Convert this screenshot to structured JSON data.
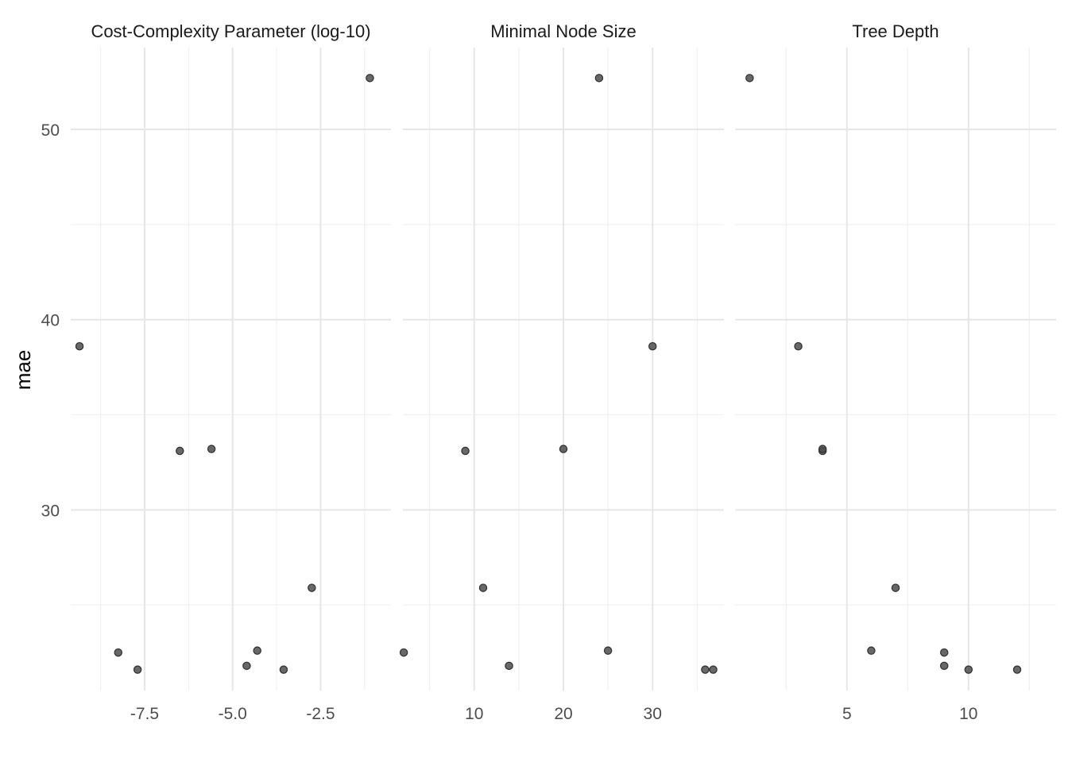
{
  "chart_data": {
    "type": "scatter",
    "ylabel": "mae",
    "xlabel": "",
    "ylim": [
      20.5,
      54.3
    ],
    "yticks": [
      30,
      40,
      50
    ],
    "ytick_labels": [
      "30",
      "40",
      "50"
    ],
    "point_color": "#333333",
    "point_fill": "#4d4d4d",
    "grid": true,
    "legend": "none",
    "panels": [
      {
        "title": "Cost-Complexity Parameter (log-10)",
        "xlim": [
          -9.6,
          -0.5
        ],
        "xticks": [
          -7.5,
          -5.0,
          -2.5
        ],
        "xtick_labels": [
          "-7.5",
          "-5.0",
          "-2.5"
        ],
        "minor_xticks": [
          -8.75,
          -6.25,
          -3.75,
          -1.25
        ],
        "points": [
          {
            "x": -9.35,
            "y": 38.6
          },
          {
            "x": -8.25,
            "y": 22.5
          },
          {
            "x": -7.7,
            "y": 21.6
          },
          {
            "x": -6.5,
            "y": 33.1
          },
          {
            "x": -5.6,
            "y": 33.2
          },
          {
            "x": -4.6,
            "y": 21.8
          },
          {
            "x": -4.3,
            "y": 22.6
          },
          {
            "x": -3.55,
            "y": 21.6
          },
          {
            "x": -2.75,
            "y": 25.9
          },
          {
            "x": -1.1,
            "y": 52.7
          }
        ]
      },
      {
        "title": "Minimal Node Size",
        "xlim": [
          2.0,
          38.0
        ],
        "xticks": [
          10,
          20,
          30
        ],
        "xtick_labels": [
          "10",
          "20",
          "30"
        ],
        "minor_xticks": [
          5,
          15,
          25,
          35
        ],
        "points": [
          {
            "x": 2.1,
            "y": 22.5
          },
          {
            "x": 9.0,
            "y": 33.1
          },
          {
            "x": 11.0,
            "y": 25.9
          },
          {
            "x": 13.9,
            "y": 21.8
          },
          {
            "x": 20.0,
            "y": 33.2
          },
          {
            "x": 24.0,
            "y": 52.7
          },
          {
            "x": 25.0,
            "y": 22.6
          },
          {
            "x": 30.0,
            "y": 38.6
          },
          {
            "x": 35.9,
            "y": 21.6
          },
          {
            "x": 36.8,
            "y": 21.6
          }
        ]
      },
      {
        "title": "Tree Depth",
        "xlim": [
          0.4,
          13.6
        ],
        "xticks": [
          5,
          10
        ],
        "xtick_labels": [
          "5",
          "10"
        ],
        "minor_xticks": [
          2.5,
          7.5,
          12.5
        ],
        "points": [
          {
            "x": 1.0,
            "y": 52.7
          },
          {
            "x": 3.0,
            "y": 38.6
          },
          {
            "x": 4.0,
            "y": 33.1
          },
          {
            "x": 4.0,
            "y": 33.2
          },
          {
            "x": 6.0,
            "y": 22.6
          },
          {
            "x": 7.0,
            "y": 25.9
          },
          {
            "x": 9.0,
            "y": 22.5
          },
          {
            "x": 9.0,
            "y": 21.8
          },
          {
            "x": 10.0,
            "y": 21.6
          },
          {
            "x": 12.0,
            "y": 21.6
          }
        ]
      }
    ]
  }
}
